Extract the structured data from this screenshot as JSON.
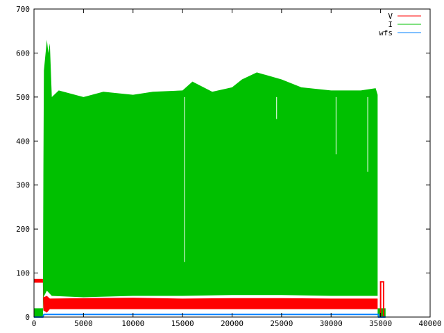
{
  "chart_data": {
    "type": "area",
    "title": "",
    "xlabel": "",
    "ylabel": "",
    "xlim": [
      0,
      40000
    ],
    "ylim": [
      0,
      700
    ],
    "xticks": [
      0,
      5000,
      10000,
      15000,
      20000,
      25000,
      30000,
      35000,
      40000
    ],
    "yticks": [
      0,
      100,
      200,
      300,
      400,
      500,
      600,
      700
    ],
    "grid": false,
    "legend_position": "top-right",
    "series": [
      {
        "name": "V",
        "color": "#ff0000",
        "upper": [
          [
            0,
            87
          ],
          [
            900,
            87
          ],
          [
            950,
            45
          ],
          [
            1300,
            48
          ],
          [
            1600,
            42
          ],
          [
            5000,
            43
          ],
          [
            10000,
            44
          ],
          [
            15000,
            42
          ],
          [
            20000,
            43
          ],
          [
            25000,
            43
          ],
          [
            30000,
            42
          ],
          [
            34700,
            42
          ],
          [
            34700,
            0
          ]
        ],
        "lower": [
          [
            0,
            78
          ],
          [
            900,
            78
          ],
          [
            950,
            15
          ],
          [
            1300,
            10
          ],
          [
            1600,
            18
          ],
          [
            5000,
            18
          ],
          [
            10000,
            18
          ],
          [
            15000,
            18
          ],
          [
            20000,
            18
          ],
          [
            25000,
            18
          ],
          [
            30000,
            18
          ],
          [
            34700,
            18
          ]
        ],
        "extra_outline": {
          "x": [
            35000,
            35300
          ],
          "y": [
            0,
            80
          ]
        }
      },
      {
        "name": "I",
        "color": "#00c000",
        "upper": [
          [
            0,
            20
          ],
          [
            900,
            20
          ],
          [
            950,
            340
          ],
          [
            1000,
            560
          ],
          [
            1300,
            630
          ],
          [
            1450,
            600
          ],
          [
            1600,
            622
          ],
          [
            1800,
            500
          ],
          [
            2500,
            515
          ],
          [
            5000,
            500
          ],
          [
            7000,
            512
          ],
          [
            10000,
            505
          ],
          [
            12000,
            512
          ],
          [
            15000,
            515
          ],
          [
            16000,
            535
          ],
          [
            18000,
            512
          ],
          [
            20000,
            522
          ],
          [
            21000,
            540
          ],
          [
            22500,
            556
          ],
          [
            25000,
            540
          ],
          [
            27000,
            522
          ],
          [
            30000,
            515
          ],
          [
            33000,
            515
          ],
          [
            34500,
            520
          ],
          [
            34700,
            505
          ],
          [
            34700,
            20
          ],
          [
            35500,
            20
          ]
        ],
        "lower": [
          [
            0,
            0
          ],
          [
            900,
            0
          ],
          [
            950,
            45
          ],
          [
            1300,
            60
          ],
          [
            1800,
            48
          ],
          [
            5000,
            45
          ],
          [
            10000,
            48
          ],
          [
            15000,
            48
          ],
          [
            20000,
            50
          ],
          [
            25000,
            50
          ],
          [
            30000,
            48
          ],
          [
            34700,
            48
          ],
          [
            34700,
            0
          ],
          [
            35500,
            0
          ]
        ],
        "dips": [
          [
            15200,
            125
          ],
          [
            24500,
            450
          ],
          [
            30500,
            370
          ],
          [
            33700,
            330
          ]
        ]
      },
      {
        "name": "wfs",
        "color": "#0080ff",
        "values": [
          [
            0,
            0
          ],
          [
            900,
            0
          ],
          [
            1000,
            6
          ],
          [
            34800,
            6
          ],
          [
            34800,
            0
          ],
          [
            35500,
            0
          ]
        ]
      }
    ]
  }
}
